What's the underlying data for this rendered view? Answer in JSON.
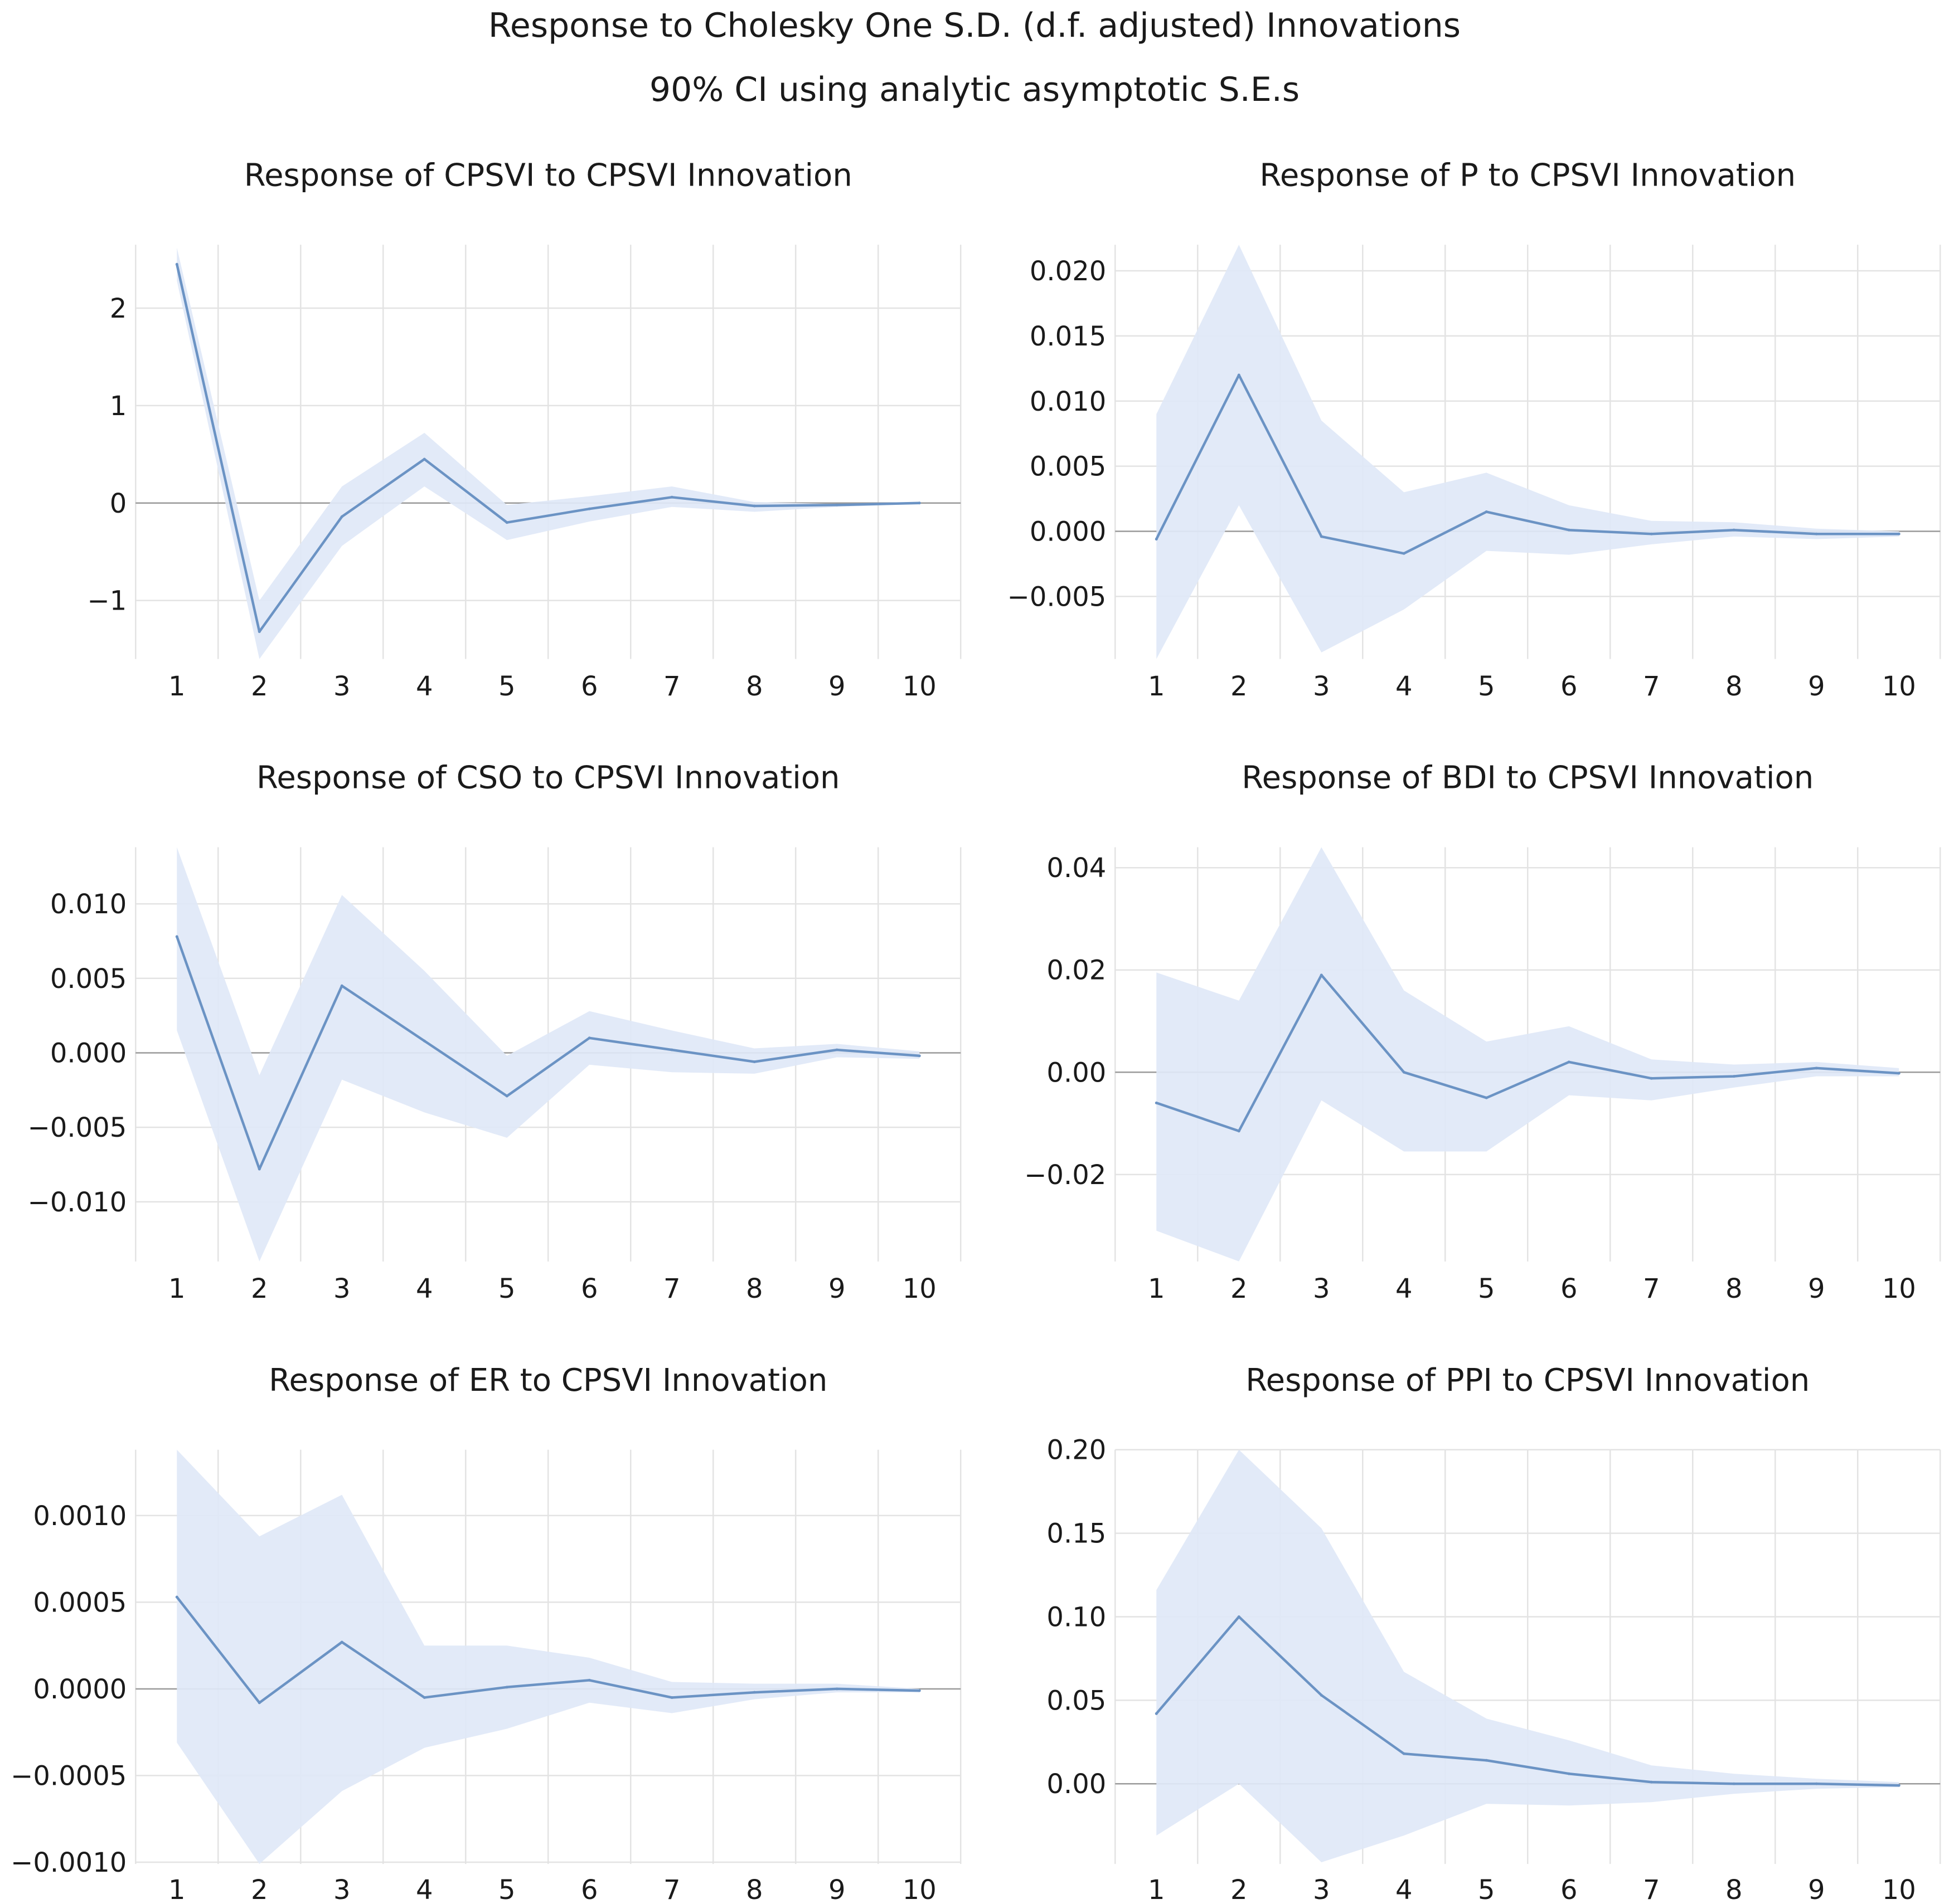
{
  "title": "Response to Cholesky One S.D. (d.f. adjusted) Innovations",
  "subtitle": "90% CI using analytic asymptotic S.E.s",
  "colors": {
    "line": "#6b93c4",
    "band": "#dfe8f7",
    "grid": "#e3e3e3",
    "zero": "#9a9a9a"
  },
  "chart_data": [
    {
      "type": "line",
      "title": "Response of CPSVI to CPSVI Innovation",
      "x": [
        1,
        2,
        3,
        4,
        5,
        6,
        7,
        8,
        9,
        10
      ],
      "ylim": [
        -1.6,
        2.65
      ],
      "yticks": [
        2,
        1,
        0,
        -1
      ],
      "ytick_labels": [
        "2",
        "1",
        "0",
        "−1"
      ],
      "series": [
        {
          "name": "response",
          "values": [
            2.45,
            -1.32,
            -0.14,
            0.45,
            -0.2,
            -0.06,
            0.06,
            -0.03,
            -0.02,
            0.0
          ]
        },
        {
          "name": "upper 90% CI",
          "values": [
            2.62,
            -1.0,
            0.17,
            0.72,
            -0.02,
            0.07,
            0.17,
            0.01,
            -0.01,
            0.01
          ]
        },
        {
          "name": "lower 90% CI",
          "values": [
            2.28,
            -1.6,
            -0.44,
            0.17,
            -0.38,
            -0.19,
            -0.04,
            -0.09,
            -0.04,
            -0.01
          ]
        }
      ]
    },
    {
      "type": "line",
      "title": "Response of P to CPSVI Innovation",
      "x": [
        1,
        2,
        3,
        4,
        5,
        6,
        7,
        8,
        9,
        10
      ],
      "ylim": [
        -0.0098,
        0.022
      ],
      "yticks": [
        0.02,
        0.015,
        0.01,
        0.005,
        0.0,
        -0.005
      ],
      "ytick_labels": [
        "0.020",
        "0.015",
        "0.010",
        "0.005",
        "0.000",
        "−0.005"
      ],
      "series": [
        {
          "name": "response",
          "values": [
            -0.0006,
            0.012,
            -0.0004,
            -0.0017,
            0.0015,
            0.0001,
            -0.0002,
            0.0001,
            -0.0002,
            -0.0002
          ]
        },
        {
          "name": "upper 90% CI",
          "values": [
            0.009,
            0.022,
            0.0085,
            0.003,
            0.0045,
            0.002,
            0.0008,
            0.0007,
            0.0002,
            0.0
          ]
        },
        {
          "name": "lower 90% CI",
          "values": [
            -0.0098,
            0.002,
            -0.0093,
            -0.006,
            -0.0015,
            -0.0018,
            -0.001,
            -0.0004,
            -0.0006,
            -0.0004
          ]
        }
      ]
    },
    {
      "type": "line",
      "title": "Response of CSO to CPSVI Innovation",
      "x": [
        1,
        2,
        3,
        4,
        5,
        6,
        7,
        8,
        9,
        10
      ],
      "ylim": [
        -0.014,
        0.0138
      ],
      "yticks": [
        0.01,
        0.005,
        0.0,
        -0.005,
        -0.01
      ],
      "ytick_labels": [
        "0.010",
        "0.005",
        "0.000",
        "−0.005",
        "−0.010"
      ],
      "series": [
        {
          "name": "response",
          "values": [
            0.0078,
            -0.0078,
            0.0045,
            0.0008,
            -0.0029,
            0.001,
            0.0002,
            -0.0006,
            0.0002,
            -0.0002
          ]
        },
        {
          "name": "upper 90% CI",
          "values": [
            0.0138,
            -0.0015,
            0.0106,
            0.0055,
            -0.0002,
            0.0028,
            0.0015,
            0.0003,
            0.0006,
            0.0001
          ]
        },
        {
          "name": "lower 90% CI",
          "values": [
            0.0015,
            -0.014,
            -0.0018,
            -0.004,
            -0.0057,
            -0.0008,
            -0.0013,
            -0.0014,
            -0.0003,
            -0.0004
          ]
        }
      ]
    },
    {
      "type": "line",
      "title": "Response of BDI to CPSVI Innovation",
      "x": [
        1,
        2,
        3,
        4,
        5,
        6,
        7,
        8,
        9,
        10
      ],
      "ylim": [
        -0.037,
        0.044
      ],
      "yticks": [
        0.04,
        0.02,
        0.0,
        -0.02
      ],
      "ytick_labels": [
        "0.04",
        "0.02",
        "0.00",
        "−0.02"
      ],
      "series": [
        {
          "name": "response",
          "values": [
            -0.006,
            -0.0115,
            0.019,
            0.0,
            -0.005,
            0.002,
            -0.0012,
            -0.0008,
            0.0008,
            -0.0002
          ]
        },
        {
          "name": "upper 90% CI",
          "values": [
            0.0195,
            0.014,
            0.044,
            0.016,
            0.006,
            0.009,
            0.0025,
            0.0015,
            0.002,
            0.0008
          ]
        },
        {
          "name": "lower 90% CI",
          "values": [
            -0.031,
            -0.037,
            -0.0055,
            -0.0155,
            -0.0155,
            -0.0045,
            -0.0055,
            -0.003,
            -0.0008,
            -0.0008
          ]
        }
      ]
    },
    {
      "type": "line",
      "title": "Response of ER to CPSVI Innovation",
      "x": [
        1,
        2,
        3,
        4,
        5,
        6,
        7,
        8,
        9,
        10
      ],
      "ylim": [
        -0.00101,
        0.00138
      ],
      "yticks": [
        0.001,
        0.0005,
        0.0,
        -0.0005,
        -0.001
      ],
      "ytick_labels": [
        "0.0010",
        "0.0005",
        "0.0000",
        "−0.0005",
        "−0.0010"
      ],
      "series": [
        {
          "name": "response",
          "values": [
            0.00053,
            -8e-05,
            0.00027,
            -5e-05,
            1e-05,
            5e-05,
            -5e-05,
            -2e-05,
            0.0,
            -1e-05
          ]
        },
        {
          "name": "upper 90% CI",
          "values": [
            0.00138,
            0.00088,
            0.00112,
            0.00025,
            0.00025,
            0.00018,
            4e-05,
            3e-05,
            3e-05,
            0.0
          ]
        },
        {
          "name": "lower 90% CI",
          "values": [
            -0.00031,
            -0.00101,
            -0.00059,
            -0.00034,
            -0.00023,
            -8e-05,
            -0.00014,
            -6e-05,
            -2e-05,
            -2e-05
          ]
        }
      ]
    },
    {
      "type": "line",
      "title": "Response of PPI to CPSVI Innovation",
      "x": [
        1,
        2,
        3,
        4,
        5,
        6,
        7,
        8,
        9,
        10
      ],
      "ylim": [
        -0.048,
        0.2
      ],
      "yticks": [
        0.2,
        0.15,
        0.1,
        0.05,
        0.0
      ],
      "ytick_labels": [
        "0.20",
        "0.15",
        "0.10",
        "0.05",
        "0.00"
      ],
      "series": [
        {
          "name": "response",
          "values": [
            0.042,
            0.1,
            0.053,
            0.018,
            0.014,
            0.006,
            0.001,
            0.0,
            0.0,
            -0.001
          ]
        },
        {
          "name": "upper 90% CI",
          "values": [
            0.116,
            0.2,
            0.153,
            0.067,
            0.039,
            0.026,
            0.011,
            0.006,
            0.003,
            0.001
          ]
        },
        {
          "name": "lower 90% CI",
          "values": [
            -0.031,
            0.0,
            -0.047,
            -0.031,
            -0.012,
            -0.013,
            -0.011,
            -0.006,
            -0.003,
            -0.002
          ]
        }
      ]
    }
  ]
}
